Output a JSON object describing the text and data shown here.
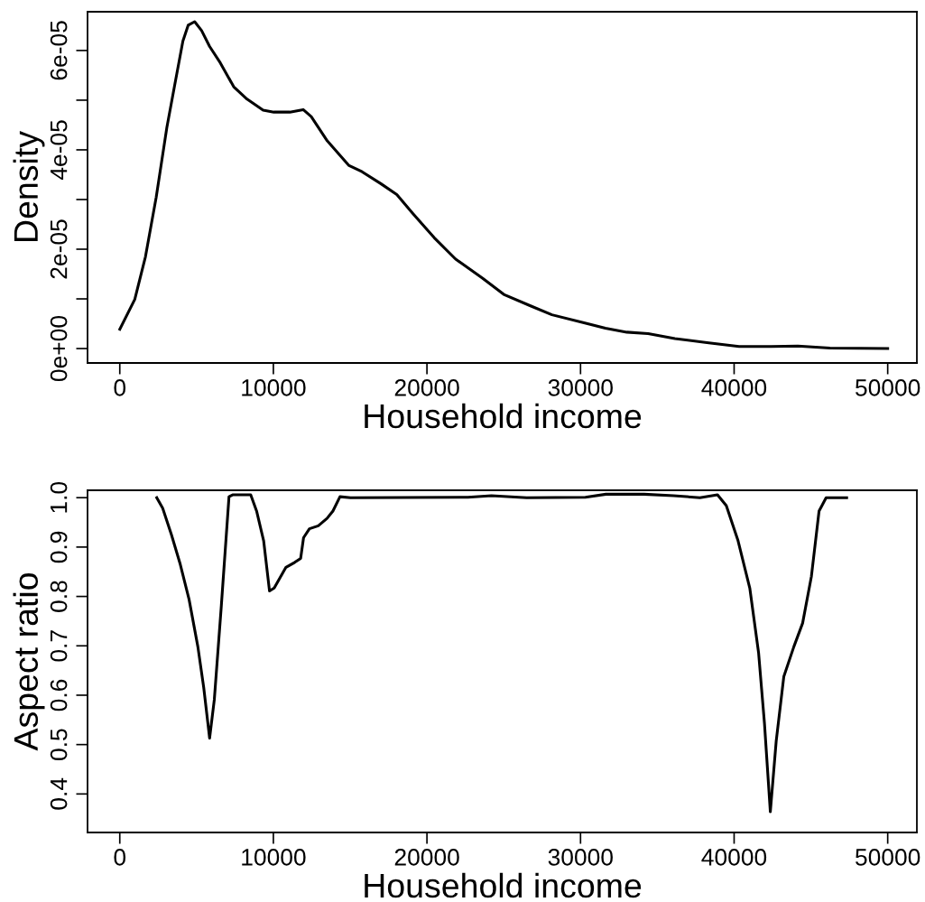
{
  "chart_data": [
    {
      "type": "line",
      "xlabel": "Household income",
      "ylabel": "Density",
      "x": [
        0,
        975,
        1671,
        2368,
        3064,
        3586,
        4109,
        4457,
        4875,
        5327,
        5850,
        6546,
        7417,
        8287,
        9332,
        10028,
        11073,
        11943,
        12465,
        13510,
        14903,
        15774,
        16993,
        18038,
        19082,
        20475,
        21868,
        23609,
        25002,
        26743,
        28136,
        30225,
        31618,
        33011,
        34404,
        36145,
        38234,
        40323,
        42412,
        44153,
        46242,
        50000
      ],
      "values": [
        3.9e-06,
        9.9e-06,
        1.85e-05,
        3.04e-05,
        4.45e-05,
        5.32e-05,
        6.19e-05,
        6.51e-05,
        6.58e-05,
        6.4e-05,
        6.08e-05,
        5.75e-05,
        5.27e-05,
        5.02e-05,
        4.8e-05,
        4.76e-05,
        4.76e-05,
        4.81e-05,
        4.67e-05,
        4.18e-05,
        3.69e-05,
        3.56e-05,
        3.32e-05,
        3.1e-05,
        2.72e-05,
        2.23e-05,
        1.8e-05,
        1.42e-05,
        1.09e-05,
        8.6e-06,
        6.8e-06,
        5.2e-06,
        4.1e-06,
        3.3e-06,
        3e-06,
        2e-06,
        1.2e-06,
        4e-07,
        4e-07,
        5e-07,
        1e-07,
        0
      ],
      "color": "#000000",
      "line_style": "solid",
      "marker": "none",
      "grid": false,
      "xlim": [
        -2100,
        51900
      ],
      "xticks": [
        0,
        10000,
        20000,
        30000,
        40000,
        50000
      ],
      "ylim": [
        -2.9e-06,
        6.78e-05
      ],
      "yticks": [
        {
          "value": 0,
          "label": "0e+00"
        },
        {
          "value": 1e-05,
          "label": null
        },
        {
          "value": 2e-05,
          "label": "2e-05"
        },
        {
          "value": 3e-05,
          "label": null
        },
        {
          "value": 4e-05,
          "label": "4e-05"
        },
        {
          "value": 5e-05,
          "label": null
        },
        {
          "value": 6e-05,
          "label": "6e-05"
        }
      ]
    },
    {
      "type": "line",
      "xlabel": "Household income",
      "ylabel": "Aspect ratio",
      "x": [
        2408,
        2791,
        3364,
        3938,
        4511,
        5085,
        5467,
        5849,
        6155,
        6614,
        7111,
        7378,
        8525,
        8907,
        9366,
        9749,
        10054,
        10819,
        11392,
        11775,
        11966,
        12348,
        12922,
        13495,
        13877,
        14336,
        15024,
        22670,
        24200,
        26493,
        30316,
        31654,
        34139,
        36050,
        37771,
        38917,
        39491,
        40255,
        41020,
        41593,
        41976,
        42358,
        42740,
        43237,
        43887,
        44461,
        45034,
        45531,
        45990,
        47328
      ],
      "values": [
        1.0,
        0.979,
        0.925,
        0.865,
        0.794,
        0.698,
        0.615,
        0.513,
        0.591,
        0.782,
        1.002,
        1.006,
        1.006,
        0.973,
        0.913,
        0.811,
        0.817,
        0.859,
        0.869,
        0.877,
        0.919,
        0.937,
        0.943,
        0.958,
        0.973,
        1.002,
        1.0,
        1.001,
        1.004,
        1.0,
        1.001,
        1.007,
        1.007,
        1.004,
        1.0,
        1.006,
        0.984,
        0.913,
        0.817,
        0.686,
        0.543,
        0.364,
        0.507,
        0.638,
        0.698,
        0.746,
        0.841,
        0.973,
        1.0,
        1.0
      ],
      "color": "#000000",
      "line_style": "solid",
      "marker": "none",
      "grid": false,
      "xlim": [
        -2100,
        51900
      ],
      "xticks": [
        0,
        10000,
        20000,
        30000,
        40000,
        50000
      ],
      "ylim": [
        0.322,
        1.015
      ],
      "yticks": [
        {
          "value": 0.4,
          "label": "0.4"
        },
        {
          "value": 0.5,
          "label": "0.5"
        },
        {
          "value": 0.6,
          "label": "0.6"
        },
        {
          "value": 0.7,
          "label": "0.7"
        },
        {
          "value": 0.8,
          "label": "0.8"
        },
        {
          "value": 0.9,
          "label": "0.9"
        },
        {
          "value": 1.0,
          "label": "1.0"
        }
      ]
    }
  ]
}
